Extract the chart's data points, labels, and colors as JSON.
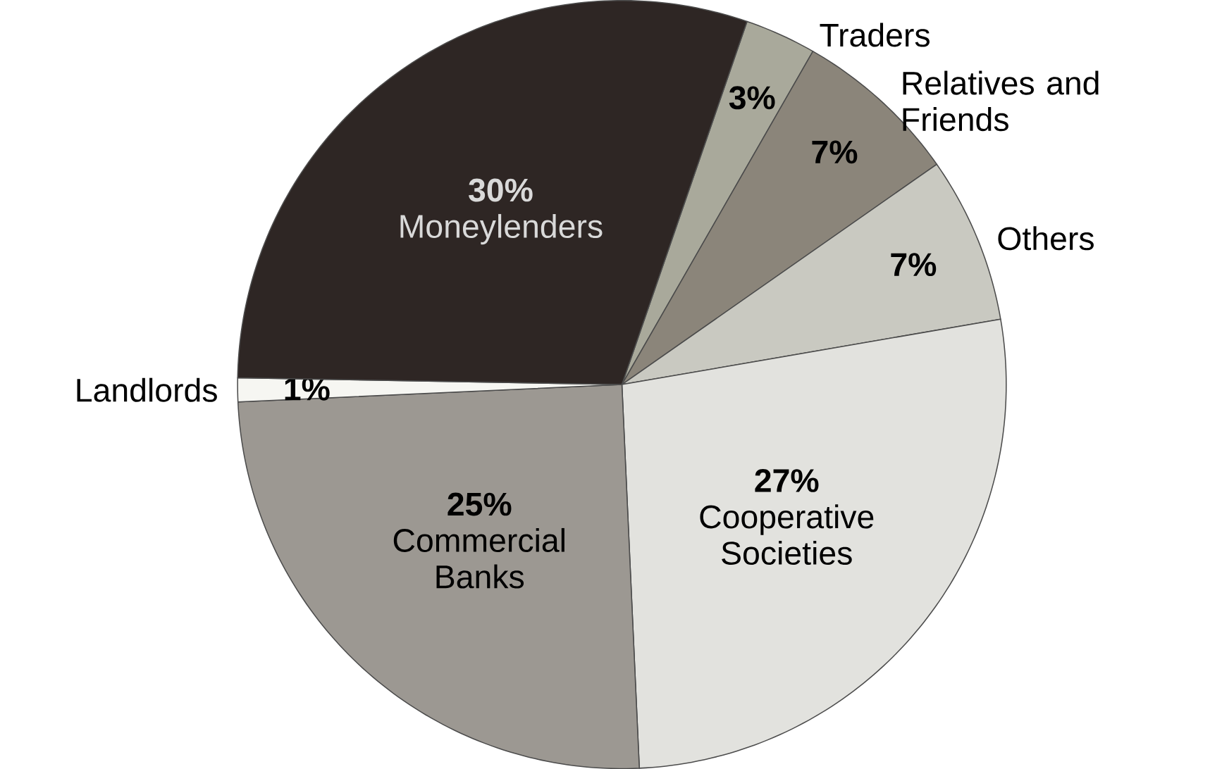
{
  "chart_data": {
    "type": "pie",
    "categories": [
      "Traders",
      "Relatives and Friends",
      "Others",
      "Cooperative Societies",
      "Commercial Banks",
      "Landlords",
      "Moneylenders"
    ],
    "values": [
      3,
      7,
      7,
      27,
      25,
      1,
      30
    ],
    "colors": [
      "#a9a99b",
      "#8b857a",
      "#c9c9c1",
      "#e2e2de",
      "#9c9892",
      "#f6f6f2",
      "#2e2624"
    ],
    "value_labels": [
      "3%",
      "7%",
      "7%",
      "27%",
      "25%",
      "1%",
      "30%"
    ]
  }
}
